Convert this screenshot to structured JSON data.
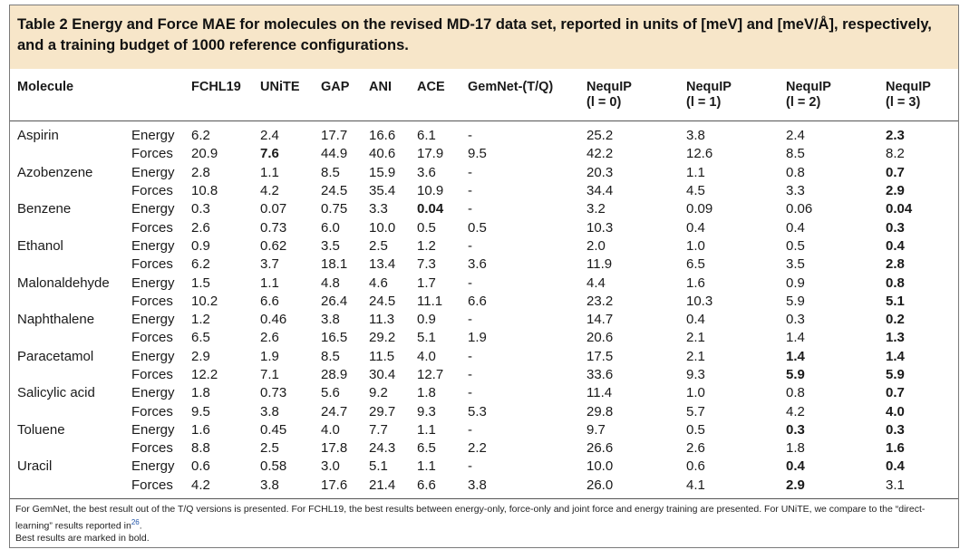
{
  "caption": "Table 2 Energy and Force MAE for molecules on the revised MD-17 data set, reported in units of [meV] and [meV/Å], respectively, and a training budget of 1000 reference configurations.",
  "headers": {
    "molecule": "Molecule",
    "fchl19": "FCHL19",
    "unite": "UNiTE",
    "gap": "GAP",
    "ani": "ANI",
    "ace": "ACE",
    "gemnet": "GemNet-(T/Q)",
    "nequip0_line1": "NequIP",
    "nequip0_line2": "(l = 0)",
    "nequip1_line1": "NequIP",
    "nequip1_line2": "(l = 1)",
    "nequip2_line1": "NequIP",
    "nequip2_line2": "(l = 2)",
    "nequip3_line1": "NequIP",
    "nequip3_line2": "(l = 3)"
  },
  "rows": [
    {
      "molecule": "Aspirin",
      "type": "Energy",
      "v": [
        "6.2",
        "2.4",
        "17.7",
        "16.6",
        "6.1",
        "-",
        "25.2",
        "3.8",
        "2.4",
        "2.3"
      ],
      "bold": [
        9
      ]
    },
    {
      "molecule": "",
      "type": "Forces",
      "v": [
        "20.9",
        "7.6",
        "44.9",
        "40.6",
        "17.9",
        "9.5",
        "42.2",
        "12.6",
        "8.5",
        "8.2"
      ],
      "bold": [
        1
      ]
    },
    {
      "molecule": "Azobenzene",
      "type": "Energy",
      "v": [
        "2.8",
        "1.1",
        "8.5",
        "15.9",
        "3.6",
        "-",
        "20.3",
        "1.1",
        "0.8",
        "0.7"
      ],
      "bold": [
        9
      ]
    },
    {
      "molecule": "",
      "type": "Forces",
      "v": [
        "10.8",
        "4.2",
        "24.5",
        "35.4",
        "10.9",
        "-",
        "34.4",
        "4.5",
        "3.3",
        "2.9"
      ],
      "bold": [
        9
      ]
    },
    {
      "molecule": "Benzene",
      "type": "Energy",
      "v": [
        "0.3",
        "0.07",
        "0.75",
        "3.3",
        "0.04",
        "-",
        "3.2",
        "0.09",
        "0.06",
        "0.04"
      ],
      "bold": [
        4,
        9
      ]
    },
    {
      "molecule": "",
      "type": "Forces",
      "v": [
        "2.6",
        "0.73",
        "6.0",
        "10.0",
        "0.5",
        "0.5",
        "10.3",
        "0.4",
        "0.4",
        "0.3"
      ],
      "bold": [
        9
      ]
    },
    {
      "molecule": "Ethanol",
      "type": "Energy",
      "v": [
        "0.9",
        "0.62",
        "3.5",
        "2.5",
        "1.2",
        "-",
        "2.0",
        "1.0",
        "0.5",
        "0.4"
      ],
      "bold": [
        9
      ]
    },
    {
      "molecule": "",
      "type": "Forces",
      "v": [
        "6.2",
        "3.7",
        "18.1",
        "13.4",
        "7.3",
        "3.6",
        "11.9",
        "6.5",
        "3.5",
        "2.8"
      ],
      "bold": [
        9
      ]
    },
    {
      "molecule": "Malonaldehyde",
      "type": "Energy",
      "v": [
        "1.5",
        "1.1",
        "4.8",
        "4.6",
        "1.7",
        "-",
        "4.4",
        "1.6",
        "0.9",
        "0.8"
      ],
      "bold": [
        9
      ]
    },
    {
      "molecule": "",
      "type": "Forces",
      "v": [
        "10.2",
        "6.6",
        "26.4",
        "24.5",
        "11.1",
        "6.6",
        "23.2",
        "10.3",
        "5.9",
        "5.1"
      ],
      "bold": [
        9
      ]
    },
    {
      "molecule": "Naphthalene",
      "type": "Energy",
      "v": [
        "1.2",
        "0.46",
        "3.8",
        "11.3",
        "0.9",
        "-",
        "14.7",
        "0.4",
        "0.3",
        "0.2"
      ],
      "bold": [
        9
      ]
    },
    {
      "molecule": "",
      "type": "Forces",
      "v": [
        "6.5",
        "2.6",
        "16.5",
        "29.2",
        "5.1",
        "1.9",
        "20.6",
        "2.1",
        "1.4",
        "1.3"
      ],
      "bold": [
        9
      ]
    },
    {
      "molecule": "Paracetamol",
      "type": "Energy",
      "v": [
        "2.9",
        "1.9",
        "8.5",
        "11.5",
        "4.0",
        "-",
        "17.5",
        "2.1",
        "1.4",
        "1.4"
      ],
      "bold": [
        8,
        9
      ]
    },
    {
      "molecule": "",
      "type": "Forces",
      "v": [
        "12.2",
        "7.1",
        "28.9",
        "30.4",
        "12.7",
        "-",
        "33.6",
        "9.3",
        "5.9",
        "5.9"
      ],
      "bold": [
        8,
        9
      ]
    },
    {
      "molecule": "Salicylic acid",
      "type": "Energy",
      "v": [
        "1.8",
        "0.73",
        "5.6",
        "9.2",
        "1.8",
        "-",
        "11.4",
        "1.0",
        "0.8",
        "0.7"
      ],
      "bold": [
        9
      ]
    },
    {
      "molecule": "",
      "type": "Forces",
      "v": [
        "9.5",
        "3.8",
        "24.7",
        "29.7",
        "9.3",
        "5.3",
        "29.8",
        "5.7",
        "4.2",
        "4.0"
      ],
      "bold": [
        9
      ]
    },
    {
      "molecule": "Toluene",
      "type": "Energy",
      "v": [
        "1.6",
        "0.45",
        "4.0",
        "7.7",
        "1.1",
        "-",
        "9.7",
        "0.5",
        "0.3",
        "0.3"
      ],
      "bold": [
        8,
        9
      ]
    },
    {
      "molecule": "",
      "type": "Forces",
      "v": [
        "8.8",
        "2.5",
        "17.8",
        "24.3",
        "6.5",
        "2.2",
        "26.6",
        "2.6",
        "1.8",
        "1.6"
      ],
      "bold": [
        9
      ]
    },
    {
      "molecule": "Uracil",
      "type": "Energy",
      "v": [
        "0.6",
        "0.58",
        "3.0",
        "5.1",
        "1.1",
        "-",
        "10.0",
        "0.6",
        "0.4",
        "0.4"
      ],
      "bold": [
        8,
        9
      ]
    },
    {
      "molecule": "",
      "type": "Forces",
      "v": [
        "4.2",
        "3.8",
        "17.6",
        "21.4",
        "6.6",
        "3.8",
        "26.0",
        "4.1",
        "2.9",
        "3.1"
      ],
      "bold": [
        8
      ]
    }
  ],
  "notes": {
    "line1": "For GemNet, the best result out of the T/Q versions is presented. For FCHL19, the best results between energy-only, force-only and joint force and energy training are presented. For UNiTE, we compare to the “direct-learning” results reported in",
    "ref": "26",
    "line1_end": ".",
    "line2": "Best results are marked in bold."
  }
}
